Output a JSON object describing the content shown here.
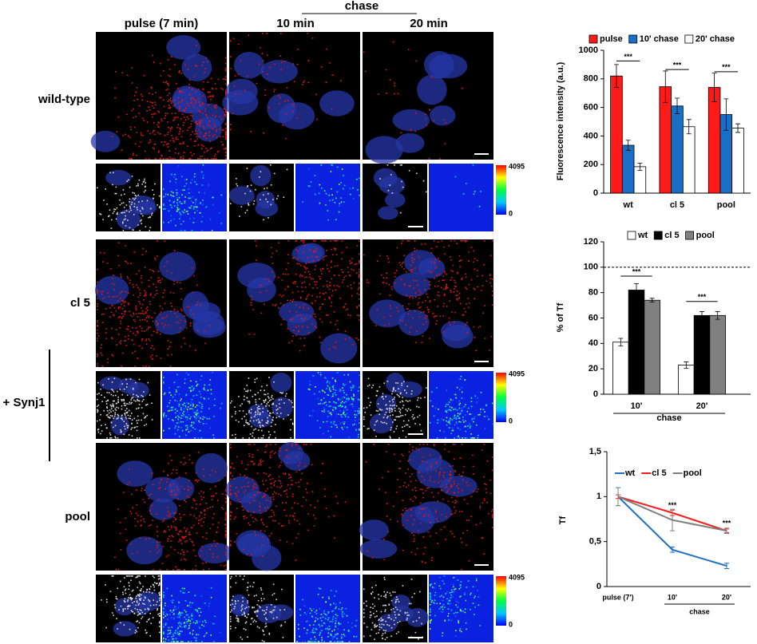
{
  "figure": {
    "column_headers": [
      "pulse (7 min)",
      "10 min",
      "20 min"
    ],
    "chase_label": "chase",
    "row_labels": [
      "wild-type",
      "cl 5",
      "pool"
    ],
    "group_label": "+ Synj1",
    "colorbar": {
      "max": 4095,
      "min": 0
    }
  },
  "chart_data": [
    {
      "type": "bar",
      "ylabel": "Fluorescence intensity (a.u.)",
      "categories": [
        "wt",
        "cl 5",
        "pool"
      ],
      "series": [
        {
          "name": "pulse",
          "color": "#ff1a1a",
          "values": [
            820,
            745,
            740
          ],
          "errors": [
            80,
            110,
            100
          ]
        },
        {
          "name": "10' chase",
          "color": "#1a6fc4",
          "values": [
            335,
            610,
            550
          ],
          "errors": [
            35,
            55,
            110
          ]
        },
        {
          "name": "20' chase",
          "color": "#ffffff",
          "values": [
            185,
            465,
            455
          ],
          "errors": [
            25,
            50,
            30
          ]
        }
      ],
      "ylim": [
        0,
        1000
      ],
      "yticks": [
        0,
        200,
        400,
        600,
        800,
        1000
      ],
      "annotations": [
        "***",
        "***",
        "***"
      ]
    },
    {
      "type": "bar",
      "ylabel": "% of Tf",
      "xlabel": "chase",
      "categories": [
        "10'",
        "20'"
      ],
      "series": [
        {
          "name": "wt",
          "color": "#ffffff",
          "values": [
            41,
            23
          ],
          "errors": [
            3,
            2.5
          ]
        },
        {
          "name": "cl 5",
          "color": "#000000",
          "values": [
            82,
            62
          ],
          "errors": [
            5,
            3
          ]
        },
        {
          "name": "pool",
          "color": "#808080",
          "values": [
            74,
            62
          ],
          "errors": [
            1.5,
            3
          ]
        }
      ],
      "ylim": [
        0,
        120
      ],
      "yticks": [
        0,
        20,
        40,
        60,
        80,
        100,
        120
      ],
      "reference_line": 100,
      "annotations": [
        "***",
        "***"
      ]
    },
    {
      "type": "line",
      "ylabel": "Tf",
      "xlabel": "chase",
      "categories": [
        "pulse (7')",
        "10'",
        "20'"
      ],
      "series": [
        {
          "name": "wt",
          "color": "#1f6fc4",
          "values": [
            1,
            0.41,
            0.23
          ],
          "errors": [
            0.1,
            0.03,
            0.03
          ]
        },
        {
          "name": "cl 5",
          "color": "#ff1a1a",
          "values": [
            1,
            0.82,
            0.62
          ],
          "errors": [
            0.02,
            0.03,
            0.02
          ]
        },
        {
          "name": "pool",
          "color": "#808080",
          "values": [
            1,
            0.74,
            0.62
          ],
          "errors": [
            0.1,
            0.12,
            0.03
          ]
        }
      ],
      "ylim": [
        0,
        1.5
      ],
      "yticks": [
        0,
        {
          "value": 0.5,
          "label": "0,5"
        },
        1,
        {
          "value": 1.5,
          "label": "1,5"
        }
      ],
      "annotations": [
        "***",
        "***"
      ]
    }
  ]
}
